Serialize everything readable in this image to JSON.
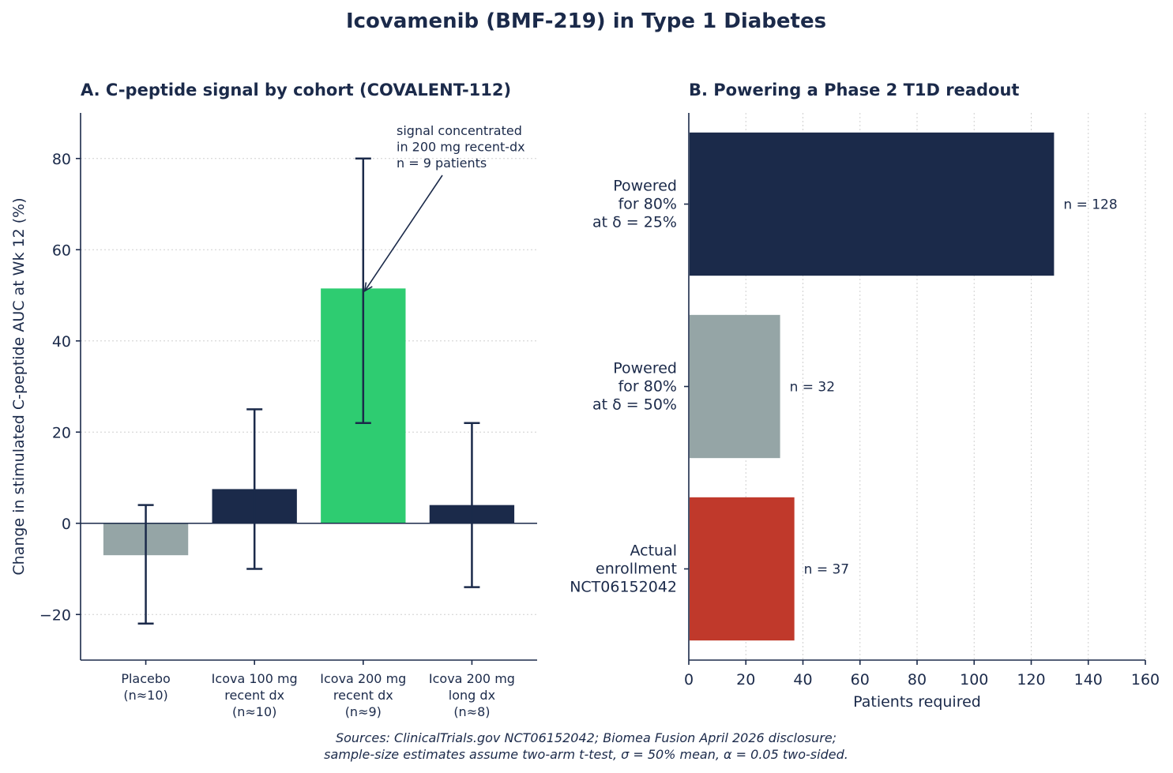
{
  "figure": {
    "title": "Icovamenib (BMF-219) in Type 1 Diabetes",
    "sources": [
      "Sources: ClinicalTrials.gov NCT06152042; Biomea Fusion April 2026 disclosure;",
      "sample-size estimates assume two-arm t-test, σ = 50% mean, α = 0.05 two-sided."
    ]
  },
  "chart_data": [
    {
      "type": "bar",
      "title": "A. C-peptide signal by cohort (COVALENT-112)",
      "ylabel": "Change in stimulated C-peptide AUC at Wk 12 (%)",
      "xlabel": "",
      "ylim": [
        -30,
        90
      ],
      "yticks": [
        -20,
        0,
        20,
        40,
        60,
        80
      ],
      "grid": "y",
      "categories": [
        [
          "Placebo",
          "(n≈10)"
        ],
        [
          "Icova 100 mg",
          "recent dx",
          "(n≈10)"
        ],
        [
          "Icova 200 mg",
          "recent dx",
          "(n≈9)"
        ],
        [
          "Icova 200 mg",
          "long dx",
          "(n≈8)"
        ]
      ],
      "values": [
        -7,
        7.5,
        51.5,
        4
      ],
      "err_low": [
        -22,
        -10,
        22,
        -14
      ],
      "err_high": [
        4,
        25,
        80,
        22
      ],
      "colors": [
        "#95a5a6",
        "#1b2a4a",
        "#2ecc71",
        "#1b2a4a"
      ],
      "annotation": {
        "lines": [
          "signal concentrated",
          "in 200 mg recent-dx",
          "n = 9 patients"
        ],
        "points_to_category": 2,
        "points_to_value": 52
      }
    },
    {
      "type": "bar",
      "orientation": "horizontal",
      "title": "B. Powering a Phase 2 T1D readout",
      "xlabel": "Patients required",
      "ylabel": "",
      "xlim": [
        0,
        160
      ],
      "xticks": [
        0,
        20,
        40,
        60,
        80,
        100,
        120,
        140,
        160
      ],
      "grid": "x",
      "categories": [
        [
          "Powered",
          "for 80%",
          "at δ = 25%"
        ],
        [
          "Powered",
          "for 80%",
          "at δ = 50%"
        ],
        [
          "Actual",
          "enrollment",
          "NCT06152042"
        ]
      ],
      "values": [
        128,
        32,
        37
      ],
      "value_labels": [
        "n = 128",
        "n = 32",
        "n = 37"
      ],
      "colors": [
        "#1b2a4a",
        "#95a5a6",
        "#c0392b"
      ]
    }
  ]
}
